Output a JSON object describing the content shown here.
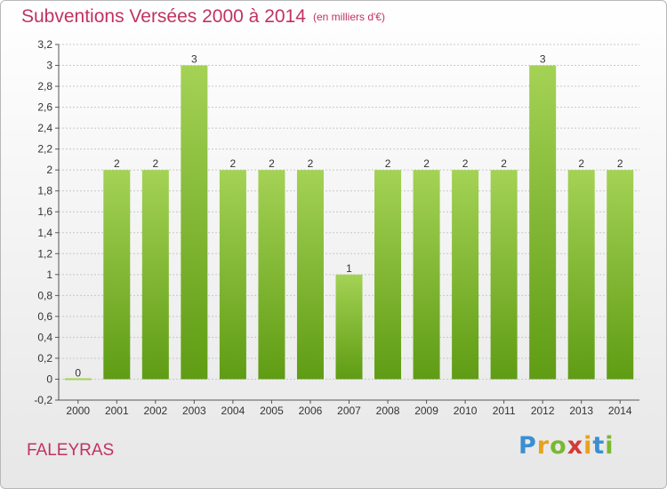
{
  "header": {
    "title": "Subventions Versées 2000 à 2014",
    "unit": "(en milliers d'€)"
  },
  "footer": {
    "commune": "FALEYRAS",
    "logo_letters": [
      {
        "char": "P",
        "color": "#3a8fd1"
      },
      {
        "char": "r",
        "color": "#e8a21b"
      },
      {
        "char": "o",
        "color": "#7ab833"
      },
      {
        "char": "x",
        "color": "#d23a3a"
      },
      {
        "char": "i",
        "color": "#e8a21b"
      },
      {
        "char": "t",
        "color": "#3a8fd1"
      },
      {
        "char": "i",
        "color": "#7ab833"
      }
    ]
  },
  "chart_data": {
    "type": "bar",
    "categories": [
      "2000",
      "2001",
      "2002",
      "2003",
      "2004",
      "2005",
      "2006",
      "2007",
      "2008",
      "2009",
      "2010",
      "2011",
      "2012",
      "2013",
      "2014"
    ],
    "values": [
      0,
      2,
      2,
      3,
      2,
      2,
      2,
      1,
      2,
      2,
      2,
      2,
      3,
      2,
      2
    ],
    "data_labels": [
      "0",
      "2",
      "2",
      "3",
      "2",
      "2",
      "2",
      "1",
      "2",
      "2",
      "2",
      "2",
      "3",
      "2",
      "2"
    ],
    "ylim": [
      -0.2,
      3.2
    ],
    "yticks": [
      -0.2,
      0,
      0.2,
      0.4,
      0.6,
      0.8,
      1,
      1.2,
      1.4,
      1.6,
      1.8,
      2,
      2.2,
      2.4,
      2.6,
      2.8,
      3,
      3.2
    ],
    "ytick_labels": [
      "-0,2",
      "0",
      "0,2",
      "0,4",
      "0,6",
      "0,8",
      "1",
      "1,2",
      "1,4",
      "1,6",
      "1,8",
      "2",
      "2,2",
      "2,4",
      "2,6",
      "2,8",
      "3",
      "3,2"
    ],
    "grid": true,
    "bar_color_top": "#a4d255",
    "bar_color_bottom": "#5f9c14",
    "grid_color": "#c8c8c8"
  }
}
